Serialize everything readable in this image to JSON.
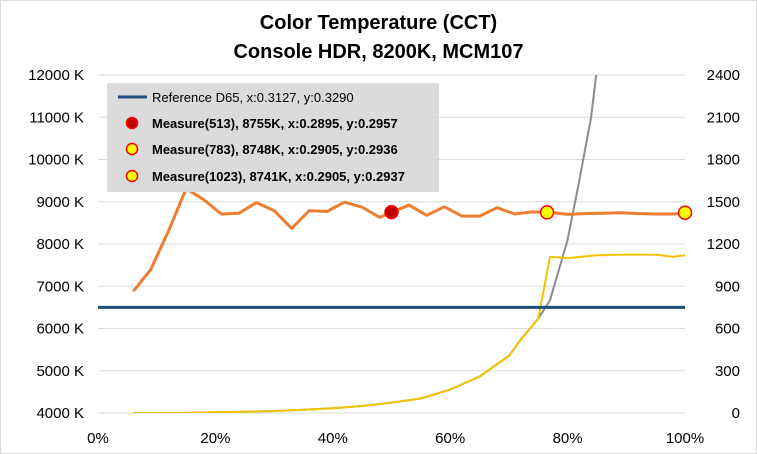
{
  "chart_data": {
    "type": "line",
    "title": "Color Temperature (CCT)",
    "subtitle": "Console HDR, 8200K, MCM107",
    "x_ticks": [
      "0%",
      "20%",
      "40%",
      "60%",
      "80%",
      "100%"
    ],
    "y_left_ticks": [
      "4000 K",
      "5000 K",
      "6000 K",
      "7000 K",
      "8000 K",
      "9000 K",
      "10000 K",
      "11000 K",
      "12000 K"
    ],
    "y_right_ticks": [
      "0",
      "300",
      "600",
      "900",
      "1200",
      "1500",
      "1800",
      "2100",
      "2400"
    ],
    "xlim": [
      0,
      100
    ],
    "ylim_left": [
      4000,
      12000
    ],
    "ylim_right": [
      0,
      2400
    ],
    "grid": "horizontal",
    "legend_position": "top-left",
    "legend": [
      "Reference D65, x:0.3127, y:0.3290",
      "Measure(513), 8755K, x:0.2895, y:0.2957",
      "Measure(783), 8748K, x:0.2905, y:0.2936",
      "Measure(1023), 8741K, x:0.2905, y:0.2937"
    ],
    "colors": {
      "reference": "#1f4e79",
      "cct": "#ed7d31",
      "luminance_gray": "#8c8c8c",
      "luminance_yellow": "#f2c400",
      "marker_513_fill": "#c00000",
      "marker_yellow_fill": "#ffff00",
      "marker_edge": "#ff0000",
      "grid": "#d9d9d9"
    },
    "series": [
      {
        "name": "Reference D65, x:0.3127, y:0.3290",
        "axis": "left",
        "x": [
          0,
          100
        ],
        "y": [
          6500,
          6500
        ]
      },
      {
        "axis": "left",
        "x": [
          6,
          9,
          12,
          15,
          18,
          21,
          24,
          27,
          30,
          33,
          36,
          39,
          42,
          45,
          48,
          50,
          53,
          56,
          59,
          62,
          65,
          68,
          71,
          74,
          77,
          80,
          83,
          86,
          89,
          92,
          95,
          98,
          100
        ],
        "y": [
          6880,
          7400,
          8300,
          9310,
          9050,
          8710,
          8730,
          8980,
          8790,
          8370,
          8790,
          8770,
          8990,
          8870,
          8630,
          8755,
          8920,
          8680,
          8880,
          8660,
          8660,
          8860,
          8710,
          8760,
          8748,
          8700,
          8720,
          8730,
          8740,
          8720,
          8710,
          8710,
          8741
        ]
      },
      {
        "axis": "right",
        "x": [
          6,
          10,
          15,
          20,
          25,
          30,
          35,
          40,
          45,
          50,
          55,
          60,
          65,
          70,
          72,
          75,
          77,
          80,
          82,
          84,
          85
        ],
        "y": [
          0,
          0,
          1,
          5,
          9,
          14,
          23,
          34,
          50,
          74,
          103,
          166,
          259,
          406,
          520,
          670,
          800,
          1230,
          1650,
          2100,
          2450
        ]
      },
      {
        "axis": "right",
        "x": [
          6,
          10,
          15,
          20,
          25,
          30,
          35,
          40,
          45,
          50,
          55,
          60,
          65,
          70,
          72,
          75,
          77,
          80,
          85,
          90,
          95,
          98,
          100
        ],
        "y": [
          0,
          0,
          1,
          5,
          9,
          14,
          23,
          34,
          50,
          74,
          103,
          166,
          259,
          406,
          520,
          670,
          1110,
          1100,
          1120,
          1125,
          1123,
          1110,
          1120
        ]
      }
    ],
    "markers": [
      {
        "label": "Measure(513), 8755K, x:0.2895, y:0.2957",
        "x": 50,
        "y": 8755,
        "style": "dark"
      },
      {
        "label": "Measure(783), 8748K, x:0.2905, y:0.2936",
        "x": 76.5,
        "y": 8748,
        "style": "yellow"
      },
      {
        "label": "Measure(1023), 8741K, x:0.2905, y:0.2937",
        "x": 100,
        "y": 8741,
        "style": "yellow"
      }
    ]
  }
}
